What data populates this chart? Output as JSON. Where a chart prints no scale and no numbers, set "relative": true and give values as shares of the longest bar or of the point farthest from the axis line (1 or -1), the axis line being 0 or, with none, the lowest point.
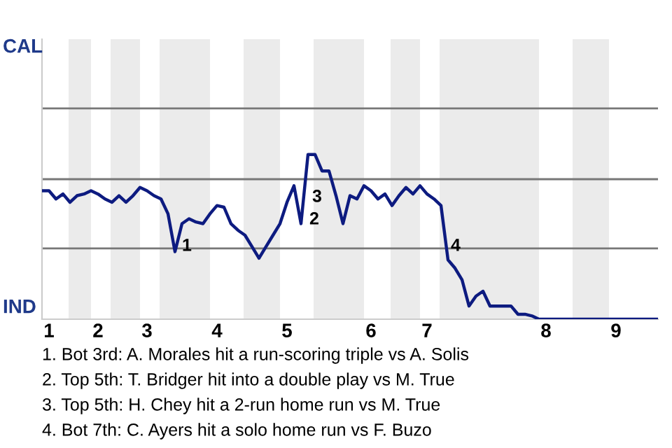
{
  "chart_data": {
    "type": "line",
    "relative": true,
    "categories": [
      null,
      "1",
      null,
      null,
      null,
      null,
      null,
      null,
      "2",
      null,
      null,
      null,
      null,
      null,
      null,
      "3",
      null,
      null,
      null,
      null,
      null,
      null,
      null,
      null,
      null,
      "4",
      null,
      null,
      null,
      null,
      null,
      null,
      null,
      null,
      null,
      "5",
      null,
      null,
      null,
      null,
      null,
      null,
      null,
      null,
      null,
      null,
      null,
      "6",
      null,
      null,
      null,
      null,
      null,
      null,
      null,
      "7",
      null,
      null,
      null,
      null,
      null,
      null,
      null,
      null,
      null,
      null,
      null,
      null,
      null,
      null,
      null,
      null,
      "8",
      null,
      null,
      null,
      null,
      null,
      null,
      null,
      null,
      null,
      "9",
      null,
      null,
      null,
      null,
      null,
      null
    ],
    "series": [
      {
        "color": "#0d1b80",
        "values": [
          0.78,
          0.78,
          0.73,
          0.76,
          0.71,
          0.75,
          0.76,
          0.78,
          0.76,
          0.73,
          0.71,
          0.75,
          0.71,
          0.75,
          0.8,
          0.78,
          0.75,
          0.73,
          0.64,
          0.41,
          0.58,
          0.61,
          0.59,
          0.58,
          0.64,
          0.69,
          0.68,
          0.58,
          0.54,
          0.51,
          0.44,
          0.37,
          0.44,
          0.51,
          0.58,
          0.71,
          0.81,
          0.58,
          1,
          1,
          0.9,
          0.9,
          0.75,
          0.58,
          0.75,
          0.73,
          0.81,
          0.78,
          0.73,
          0.76,
          0.69,
          0.75,
          0.8,
          0.76,
          0.81,
          0.76,
          0.73,
          0.69,
          0.36,
          0.31,
          0.24,
          0.08,
          0.14,
          0.17,
          0.08,
          0.08,
          0.08,
          0.08,
          0.03,
          0.03,
          0.02,
          0,
          0,
          0,
          0,
          0,
          0,
          0,
          0,
          0,
          0,
          0,
          0,
          0,
          0,
          0,
          0,
          0,
          0
        ]
      }
    ],
    "ref_lines": [
      {
        "axis": "y",
        "value": 0.43,
        "label": null,
        "color": "#777777"
      },
      {
        "axis": "y",
        "value": 0.85,
        "label": null,
        "color": "#777777"
      },
      {
        "axis": "y",
        "value": 1.28,
        "label": null,
        "color": "#777777"
      }
    ],
    "annotations": [
      "CAL",
      "IND",
      "1",
      "2",
      "3",
      "4",
      "1. Bot 3rd: A. Morales hit a run-scoring triple vs A. Solis",
      "2. Top 5th: T. Bridger hit into a double play vs M. True",
      "3. Top 5th: H. Chey hit a 2-run home run vs M. True",
      "4. Bot 7th: C. Ayers hit a solo home run vs F. Buzo"
    ]
  }
}
